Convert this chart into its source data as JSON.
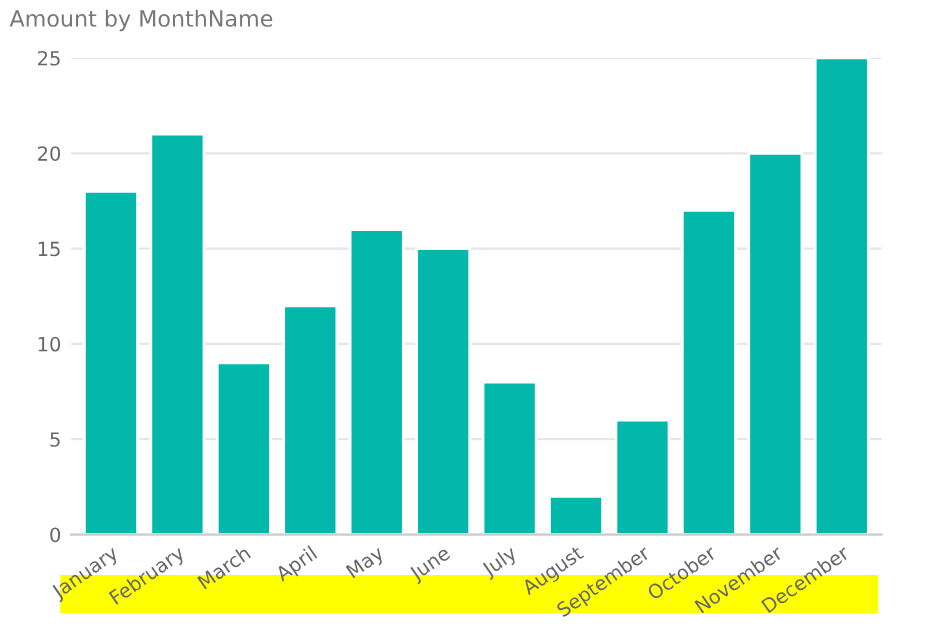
{
  "chart_data": {
    "type": "bar",
    "title": "Amount by MonthName",
    "categories": [
      "January",
      "February",
      "March",
      "April",
      "May",
      "June",
      "July",
      "August",
      "September",
      "October",
      "November",
      "December"
    ],
    "values": [
      18,
      21,
      9,
      12,
      16,
      15,
      8,
      2,
      6,
      17,
      20,
      25
    ],
    "color": "#01b8aa",
    "ylim": [
      0,
      25
    ],
    "yticks": [
      0,
      5,
      10,
      15,
      20,
      25
    ],
    "grid": "y"
  }
}
